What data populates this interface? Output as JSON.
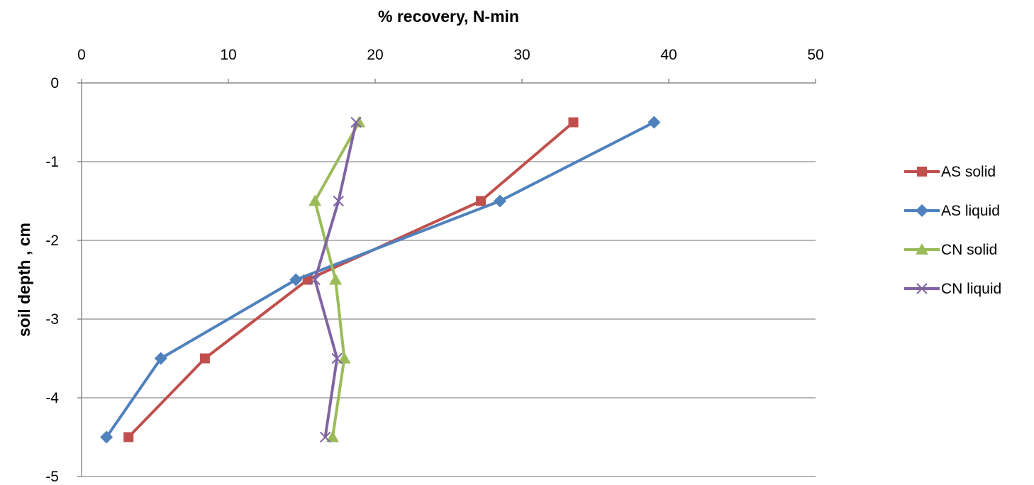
{
  "chart_data": {
    "type": "line",
    "title": "",
    "xlabel": "% recovery, N-min",
    "ylabel": "soil depth , cm",
    "xlim": [
      0,
      50
    ],
    "ylim": [
      -5,
      0
    ],
    "x_ticks": [
      0,
      10,
      20,
      30,
      40,
      50
    ],
    "y_ticks": [
      0,
      -1,
      -2,
      -3,
      -4,
      -5
    ],
    "x_axis_position": "top",
    "grid": {
      "horizontal": true,
      "vertical": false
    },
    "legend_position": "right",
    "series": [
      {
        "name": "AS solid",
        "color": "#C0504D",
        "marker": "square",
        "points": [
          [
            33.5,
            -0.5
          ],
          [
            27.2,
            -1.5
          ],
          [
            15.4,
            -2.5
          ],
          [
            8.4,
            -3.5
          ],
          [
            3.2,
            -4.5
          ]
        ]
      },
      {
        "name": "AS liquid",
        "color": "#4F81BD",
        "marker": "diamond",
        "points": [
          [
            39.0,
            -0.5
          ],
          [
            28.5,
            -1.5
          ],
          [
            14.6,
            -2.5
          ],
          [
            5.4,
            -3.5
          ],
          [
            1.7,
            -4.5
          ]
        ]
      },
      {
        "name": "CN solid",
        "color": "#9BBB59",
        "marker": "triangle",
        "points": [
          [
            18.9,
            -0.5
          ],
          [
            15.9,
            -1.5
          ],
          [
            17.3,
            -2.5
          ],
          [
            17.9,
            -3.5
          ],
          [
            17.1,
            -4.5
          ]
        ]
      },
      {
        "name": "CN liquid",
        "color": "#8064A2",
        "marker": "x",
        "points": [
          [
            18.7,
            -0.5
          ],
          [
            17.5,
            -1.5
          ],
          [
            15.9,
            -2.5
          ],
          [
            17.4,
            -3.5
          ],
          [
            16.6,
            -4.5
          ]
        ]
      }
    ]
  }
}
